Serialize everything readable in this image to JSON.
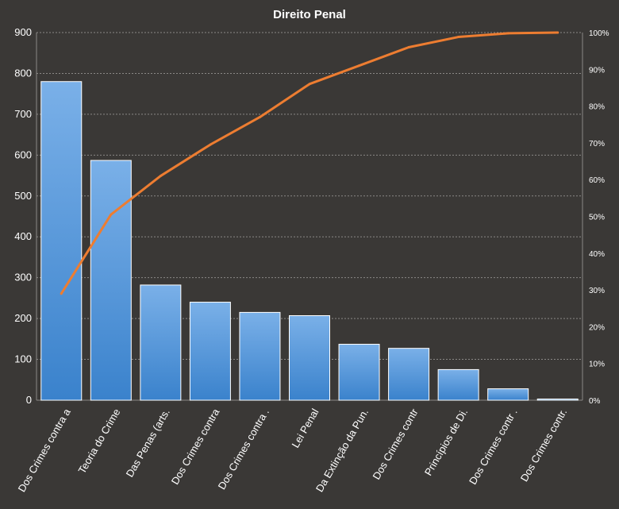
{
  "chart_data": {
    "type": "bar",
    "title": "Direito  Penal",
    "categories": [
      "Dos Crimes contra a",
      "Teoria do Crime",
      "Das Penas (arts.",
      "Dos Crimes contra",
      "Dos Crimes contra .",
      "Lei Penal",
      "Da Extinção da Pun.",
      "Dos Crimes contr",
      "Princípios de Di.",
      "Dos Crimes contr .",
      "Dos Crimes contr."
    ],
    "series": [
      {
        "type": "bar",
        "values": [
          780,
          587,
          282,
          240,
          215,
          207,
          137,
          127,
          75,
          28,
          3
        ]
      },
      {
        "type": "line",
        "axis": "right",
        "values": [
          29,
          50.5,
          61,
          69.5,
          77,
          86,
          91,
          96,
          98.8,
          99.8,
          100
        ]
      }
    ],
    "ylim": [
      0,
      900
    ],
    "yticks": [
      "0",
      "100",
      "200",
      "300",
      "400",
      "500",
      "600",
      "700",
      "800",
      "900"
    ],
    "y2lim": [
      0,
      100
    ],
    "y2ticks": [
      "0%",
      "10%",
      "20%",
      "30%",
      "40%",
      "50%",
      "60%",
      "70%",
      "80%",
      "90%",
      "100%"
    ],
    "grid": true,
    "legend": "none",
    "colors": {
      "background": "#3a3836",
      "bar_top": "#7ab0e8",
      "bar_bottom": "#3a82cc",
      "line": "#ed7d31",
      "text": "#ffffff"
    }
  }
}
